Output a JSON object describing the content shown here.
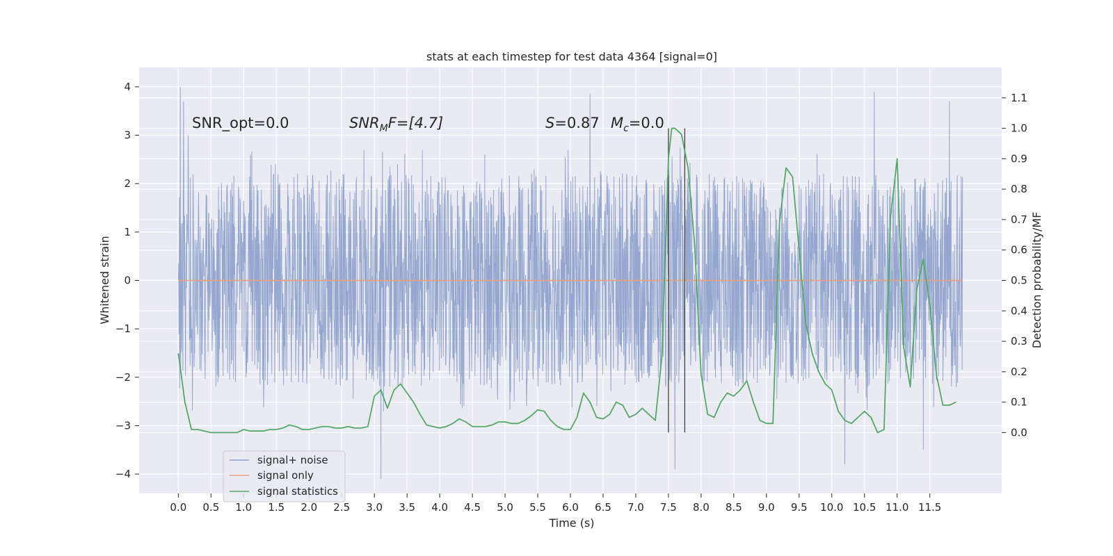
{
  "chart_data": {
    "type": "line",
    "title": "stats at each timestep for test data 4364 [signal=0]",
    "xlabel": "Time (s)",
    "ylabel": "Whitened strain",
    "ylabel_right": "Detection probability/MF",
    "xlim": [
      -0.6,
      12.6
    ],
    "ylim": [
      -4.4,
      4.4
    ],
    "ylim_right": [
      -0.2,
      1.2
    ],
    "xticks": [
      "0.0",
      "0.5",
      "1.0",
      "1.5",
      "2.0",
      "2.5",
      "3.0",
      "3.5",
      "4.0",
      "4.5",
      "5.0",
      "5.5",
      "6.0",
      "6.5",
      "7.0",
      "7.5",
      "8.0",
      "8.5",
      "9.0",
      "9.5",
      "10.0",
      "10.5",
      "11.0",
      "11.5"
    ],
    "yticks": [
      "4",
      "3",
      "2",
      "1",
      "0",
      "−1",
      "−2",
      "−3",
      "−4"
    ],
    "yticks_right": [
      "1.1",
      "1.0",
      "0.9",
      "0.8",
      "0.7",
      "0.6",
      "0.5",
      "0.4",
      "0.3",
      "0.2",
      "0.1",
      "0.0"
    ],
    "annotations": {
      "snr_opt": "SNR_opt=0.0",
      "snr_mf_main": "SNR",
      "snr_mf_sub": "M",
      "snr_mf_tail": "F=[4.7]",
      "s_label": "S",
      "s_value": "=0.87",
      "mc_label": "M",
      "mc_sub": "c",
      "mc_value": "=0.0"
    },
    "vlines": [
      7.5,
      7.75
    ],
    "legend": {
      "placement": "lower-left",
      "entries": [
        "signal+ noise",
        "signal only",
        "signal statistics"
      ]
    },
    "series": [
      {
        "name": "signal+ noise",
        "color": "#8da0cb",
        "t_start": 0.0,
        "t_end": 12.0,
        "typical_peak": 2.2,
        "envelope_max": 4.0,
        "envelope_min": -4.1,
        "spikes": [
          {
            "t": 0.03,
            "v": 4.0
          },
          {
            "t": 0.08,
            "v": 3.7
          },
          {
            "t": 0.15,
            "v": 3.0
          },
          {
            "t": 3.1,
            "v": -4.1
          },
          {
            "t": 6.3,
            "v": 3.85
          },
          {
            "t": 7.6,
            "v": -3.9
          },
          {
            "t": 10.2,
            "v": -3.8
          },
          {
            "t": 10.65,
            "v": 3.9
          },
          {
            "t": 11.4,
            "v": -3.5
          },
          {
            "t": 11.8,
            "v": 3.7
          }
        ]
      },
      {
        "name": "signal only",
        "color": "#e5a182",
        "x": [
          0.0,
          12.0
        ],
        "y": [
          0.0,
          0.0
        ]
      },
      {
        "name": "signal statistics",
        "color": "#55a868",
        "axis": "right",
        "x": [
          0.0,
          0.1,
          0.2,
          0.3,
          0.4,
          0.5,
          0.6,
          0.7,
          0.8,
          0.9,
          1.0,
          1.1,
          1.2,
          1.3,
          1.4,
          1.5,
          1.6,
          1.7,
          1.8,
          1.9,
          2.0,
          2.1,
          2.2,
          2.3,
          2.4,
          2.5,
          2.6,
          2.7,
          2.8,
          2.9,
          3.0,
          3.1,
          3.2,
          3.3,
          3.4,
          3.5,
          3.6,
          3.7,
          3.8,
          3.9,
          4.0,
          4.1,
          4.2,
          4.3,
          4.4,
          4.5,
          4.6,
          4.7,
          4.8,
          4.9,
          5.0,
          5.1,
          5.2,
          5.3,
          5.4,
          5.5,
          5.6,
          5.7,
          5.8,
          5.9,
          6.0,
          6.1,
          6.2,
          6.3,
          6.4,
          6.5,
          6.6,
          6.7,
          6.8,
          6.9,
          7.0,
          7.1,
          7.2,
          7.3,
          7.4,
          7.5,
          7.55,
          7.6,
          7.7,
          7.8,
          7.9,
          8.0,
          8.1,
          8.2,
          8.3,
          8.4,
          8.5,
          8.6,
          8.7,
          8.8,
          8.9,
          9.0,
          9.1,
          9.2,
          9.3,
          9.4,
          9.5,
          9.6,
          9.7,
          9.8,
          9.9,
          10.0,
          10.1,
          10.2,
          10.3,
          10.4,
          10.5,
          10.6,
          10.7,
          10.8,
          10.9,
          11.0,
          11.1,
          11.2,
          11.3,
          11.4,
          11.5,
          11.6,
          11.7,
          11.8,
          11.9
        ],
        "y": [
          0.26,
          0.1,
          0.01,
          0.01,
          0.005,
          0.0,
          0.0,
          0.0,
          0.0,
          0.0,
          0.01,
          0.005,
          0.005,
          0.005,
          0.01,
          0.01,
          0.015,
          0.025,
          0.02,
          0.01,
          0.01,
          0.015,
          0.02,
          0.02,
          0.015,
          0.015,
          0.02,
          0.015,
          0.015,
          0.02,
          0.12,
          0.14,
          0.08,
          0.14,
          0.16,
          0.13,
          0.1,
          0.06,
          0.025,
          0.02,
          0.015,
          0.02,
          0.03,
          0.045,
          0.035,
          0.02,
          0.02,
          0.02,
          0.025,
          0.035,
          0.035,
          0.03,
          0.03,
          0.04,
          0.055,
          0.075,
          0.07,
          0.04,
          0.02,
          0.01,
          0.01,
          0.05,
          0.13,
          0.1,
          0.05,
          0.045,
          0.06,
          0.1,
          0.09,
          0.05,
          0.06,
          0.08,
          0.06,
          0.04,
          0.25,
          0.9,
          1.0,
          1.0,
          0.98,
          0.87,
          0.62,
          0.19,
          0.06,
          0.05,
          0.1,
          0.13,
          0.12,
          0.14,
          0.17,
          0.1,
          0.04,
          0.03,
          0.03,
          0.69,
          0.87,
          0.84,
          0.6,
          0.36,
          0.26,
          0.2,
          0.16,
          0.14,
          0.07,
          0.04,
          0.03,
          0.05,
          0.07,
          0.05,
          0.0,
          0.01,
          0.71,
          0.9,
          0.28,
          0.15,
          0.47,
          0.57,
          0.42,
          0.19,
          0.09,
          0.09,
          0.1
        ]
      }
    ]
  }
}
